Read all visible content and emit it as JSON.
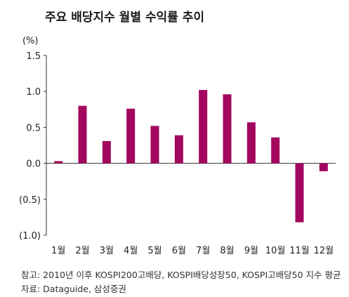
{
  "title": "주요 배당지수 월별 수익률 추이",
  "unit": "(%)",
  "footnote_source": "참고: 2010년 이후 KOSPI200고배당, KOSPI배당성장50, KOSPI고배당50 지수 평균",
  "footnote_data": "자료: Dataguide, 삼성증권",
  "colors": {
    "bar": "#a3065f",
    "axis": "#333333",
    "text": "#222222"
  },
  "chart_data": {
    "type": "bar",
    "title": "주요 배당지수 월별 수익률 추이",
    "ylabel": "(%)",
    "xlabel": "",
    "categories": [
      "1월",
      "2월",
      "3월",
      "4월",
      "5월",
      "6월",
      "7월",
      "8월",
      "9월",
      "10월",
      "11월",
      "12월"
    ],
    "values": [
      0.03,
      0.8,
      0.31,
      0.76,
      0.52,
      0.39,
      1.02,
      0.96,
      0.57,
      0.36,
      -0.82,
      -0.11
    ],
    "ylim": [
      -1.0,
      1.5
    ],
    "yticks": [
      1.5,
      1.0,
      0.5,
      0.0,
      -0.5,
      -1.0
    ],
    "ytick_labels": [
      "1.5",
      "1.0",
      "0.5",
      "0.0",
      "(0.5)",
      "(1.0)"
    ],
    "grid": false,
    "legend": "none"
  }
}
